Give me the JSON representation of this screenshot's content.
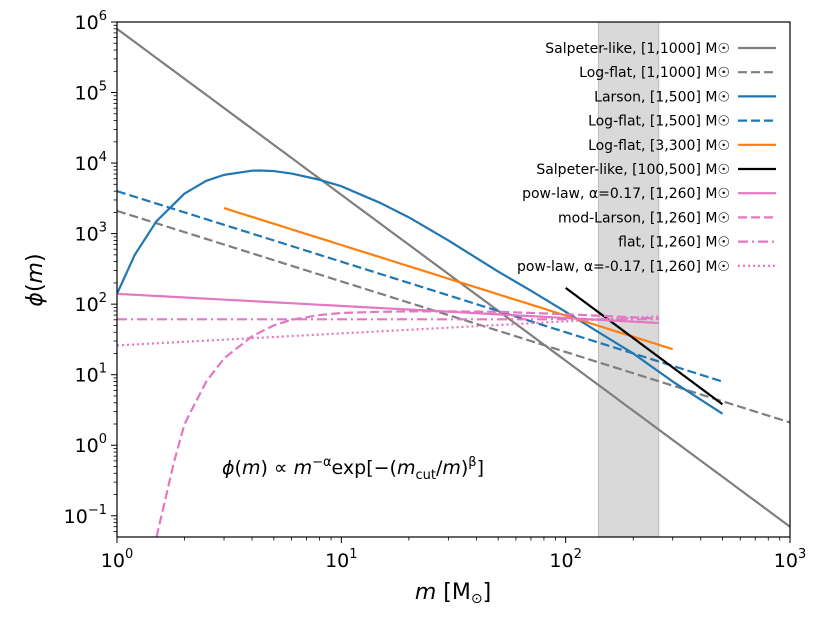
{
  "chart_data": {
    "type": "line",
    "xscale": "log",
    "yscale": "log",
    "xlim": [
      1,
      1000
    ],
    "ylim": [
      0.05,
      1000000
    ],
    "xlabel": "m [M☉]",
    "ylabel": "ϕ(m)",
    "xticks": [
      {
        "value": 1,
        "base": "10",
        "exp": "0"
      },
      {
        "value": 10,
        "base": "10",
        "exp": "1"
      },
      {
        "value": 100,
        "base": "10",
        "exp": "2"
      },
      {
        "value": 1000,
        "base": "10",
        "exp": "3"
      }
    ],
    "yticks": [
      {
        "value": 0.1,
        "base": "10",
        "exp": "−1"
      },
      {
        "value": 1,
        "base": "10",
        "exp": "0"
      },
      {
        "value": 10,
        "base": "10",
        "exp": "1"
      },
      {
        "value": 100,
        "base": "10",
        "exp": "2"
      },
      {
        "value": 1000,
        "base": "10",
        "exp": "3"
      },
      {
        "value": 10000,
        "base": "10",
        "exp": "4"
      },
      {
        "value": 100000,
        "base": "10",
        "exp": "5"
      },
      {
        "value": 1000000,
        "base": "10",
        "exp": "6"
      }
    ],
    "shaded_region": {
      "x": [
        140,
        260
      ],
      "color": "#d9d9d9"
    },
    "annotation": "ϕ(m) ∝ m^−α exp[−(m_cut/m)^β]",
    "legend_location": "top-right",
    "series": [
      {
        "name": "Salpeter-like, [1,1000] M☉",
        "color": "#7f7f7f",
        "style": "solid",
        "x": [
          1,
          1000
        ],
        "y": [
          800000,
          0.07
        ]
      },
      {
        "name": "Log-flat, [1,1000] M☉",
        "color": "#7f7f7f",
        "style": "dashed",
        "x": [
          1,
          1000
        ],
        "y": [
          2100,
          2.1
        ]
      },
      {
        "name": "Larson, [1,500] M☉",
        "color": "#1f77b4",
        "style": "solid",
        "x": [
          1,
          1.2,
          1.5,
          2,
          2.5,
          3,
          4,
          4.3,
          5,
          6,
          8,
          10,
          15,
          20,
          30,
          50,
          70,
          100,
          150,
          200,
          300,
          500
        ],
        "y": [
          140,
          500,
          1500,
          3700,
          5600,
          6800,
          7800,
          7850,
          7700,
          7100,
          5800,
          4700,
          2700,
          1700,
          800,
          290,
          155,
          78,
          35,
          20,
          8,
          2.8
        ]
      },
      {
        "name": "Log-flat, [1,500] M☉",
        "color": "#1f77b4",
        "style": "dashed",
        "x": [
          1,
          500
        ],
        "y": [
          4000,
          8
        ]
      },
      {
        "name": "Log-flat, [3,300] M☉",
        "color": "#ff7f0e",
        "style": "solid",
        "x": [
          3,
          300
        ],
        "y": [
          2300,
          23
        ]
      },
      {
        "name": "Salpeter-like, [100,500] M☉",
        "color": "#000000",
        "style": "solid",
        "x": [
          100,
          500
        ],
        "y": [
          170,
          3.8
        ]
      },
      {
        "name": "pow-law, α=0.17, [1,260] M☉",
        "color": "#e377c2",
        "style": "solid",
        "x": [
          1,
          260
        ],
        "y": [
          140,
          54
        ]
      },
      {
        "name": "mod-Larson, [1,260] M☉",
        "color": "#e377c2",
        "style": "dashed",
        "x": [
          1.5,
          1.8,
          2,
          2.5,
          3,
          4,
          5,
          6,
          8,
          10,
          15,
          20,
          30,
          50,
          100,
          150,
          200,
          260
        ],
        "y": [
          0.05,
          0.6,
          2,
          8,
          17,
          35,
          50,
          60,
          70,
          75,
          78,
          79,
          79,
          78,
          72,
          68,
          65,
          62
        ]
      },
      {
        "name": "flat, [1,260] M☉",
        "color": "#e377c2",
        "style": "dashdot",
        "x": [
          1,
          260
        ],
        "y": [
          61,
          61
        ]
      },
      {
        "name": "pow-law, α=-0.17, [1,260] M☉",
        "color": "#e377c2",
        "style": "dotted",
        "x": [
          1,
          260
        ],
        "y": [
          26,
          67
        ]
      }
    ]
  }
}
